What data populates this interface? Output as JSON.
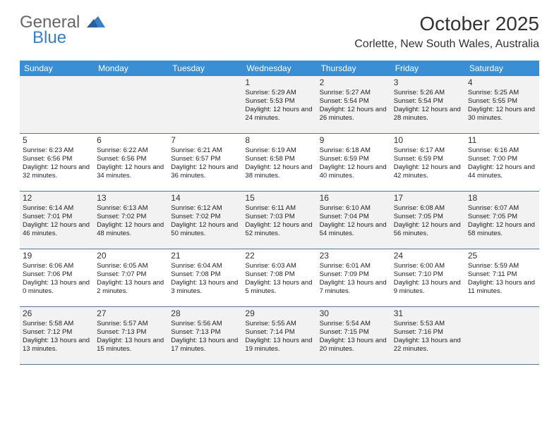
{
  "logo": {
    "text1": "General",
    "text2": "Blue"
  },
  "title": "October 2025",
  "location": "Corlette, New South Wales, Australia",
  "colors": {
    "header_bar": "#3a8fd4",
    "row_alt": "#f2f2f2",
    "row_border": "#5a7590",
    "logo_blue": "#3a7fc4"
  },
  "day_names": [
    "Sunday",
    "Monday",
    "Tuesday",
    "Wednesday",
    "Thursday",
    "Friday",
    "Saturday"
  ],
  "weeks": [
    [
      {},
      {},
      {},
      {
        "n": "1",
        "sr": "5:29 AM",
        "ss": "5:53 PM",
        "dl": "12 hours and 24 minutes."
      },
      {
        "n": "2",
        "sr": "5:27 AM",
        "ss": "5:54 PM",
        "dl": "12 hours and 26 minutes."
      },
      {
        "n": "3",
        "sr": "5:26 AM",
        "ss": "5:54 PM",
        "dl": "12 hours and 28 minutes."
      },
      {
        "n": "4",
        "sr": "5:25 AM",
        "ss": "5:55 PM",
        "dl": "12 hours and 30 minutes."
      }
    ],
    [
      {
        "n": "5",
        "sr": "6:23 AM",
        "ss": "6:56 PM",
        "dl": "12 hours and 32 minutes."
      },
      {
        "n": "6",
        "sr": "6:22 AM",
        "ss": "6:56 PM",
        "dl": "12 hours and 34 minutes."
      },
      {
        "n": "7",
        "sr": "6:21 AM",
        "ss": "6:57 PM",
        "dl": "12 hours and 36 minutes."
      },
      {
        "n": "8",
        "sr": "6:19 AM",
        "ss": "6:58 PM",
        "dl": "12 hours and 38 minutes."
      },
      {
        "n": "9",
        "sr": "6:18 AM",
        "ss": "6:59 PM",
        "dl": "12 hours and 40 minutes."
      },
      {
        "n": "10",
        "sr": "6:17 AM",
        "ss": "6:59 PM",
        "dl": "12 hours and 42 minutes."
      },
      {
        "n": "11",
        "sr": "6:16 AM",
        "ss": "7:00 PM",
        "dl": "12 hours and 44 minutes."
      }
    ],
    [
      {
        "n": "12",
        "sr": "6:14 AM",
        "ss": "7:01 PM",
        "dl": "12 hours and 46 minutes."
      },
      {
        "n": "13",
        "sr": "6:13 AM",
        "ss": "7:02 PM",
        "dl": "12 hours and 48 minutes."
      },
      {
        "n": "14",
        "sr": "6:12 AM",
        "ss": "7:02 PM",
        "dl": "12 hours and 50 minutes."
      },
      {
        "n": "15",
        "sr": "6:11 AM",
        "ss": "7:03 PM",
        "dl": "12 hours and 52 minutes."
      },
      {
        "n": "16",
        "sr": "6:10 AM",
        "ss": "7:04 PM",
        "dl": "12 hours and 54 minutes."
      },
      {
        "n": "17",
        "sr": "6:08 AM",
        "ss": "7:05 PM",
        "dl": "12 hours and 56 minutes."
      },
      {
        "n": "18",
        "sr": "6:07 AM",
        "ss": "7:05 PM",
        "dl": "12 hours and 58 minutes."
      }
    ],
    [
      {
        "n": "19",
        "sr": "6:06 AM",
        "ss": "7:06 PM",
        "dl": "13 hours and 0 minutes."
      },
      {
        "n": "20",
        "sr": "6:05 AM",
        "ss": "7:07 PM",
        "dl": "13 hours and 2 minutes."
      },
      {
        "n": "21",
        "sr": "6:04 AM",
        "ss": "7:08 PM",
        "dl": "13 hours and 3 minutes."
      },
      {
        "n": "22",
        "sr": "6:03 AM",
        "ss": "7:08 PM",
        "dl": "13 hours and 5 minutes."
      },
      {
        "n": "23",
        "sr": "6:01 AM",
        "ss": "7:09 PM",
        "dl": "13 hours and 7 minutes."
      },
      {
        "n": "24",
        "sr": "6:00 AM",
        "ss": "7:10 PM",
        "dl": "13 hours and 9 minutes."
      },
      {
        "n": "25",
        "sr": "5:59 AM",
        "ss": "7:11 PM",
        "dl": "13 hours and 11 minutes."
      }
    ],
    [
      {
        "n": "26",
        "sr": "5:58 AM",
        "ss": "7:12 PM",
        "dl": "13 hours and 13 minutes."
      },
      {
        "n": "27",
        "sr": "5:57 AM",
        "ss": "7:13 PM",
        "dl": "13 hours and 15 minutes."
      },
      {
        "n": "28",
        "sr": "5:56 AM",
        "ss": "7:13 PM",
        "dl": "13 hours and 17 minutes."
      },
      {
        "n": "29",
        "sr": "5:55 AM",
        "ss": "7:14 PM",
        "dl": "13 hours and 19 minutes."
      },
      {
        "n": "30",
        "sr": "5:54 AM",
        "ss": "7:15 PM",
        "dl": "13 hours and 20 minutes."
      },
      {
        "n": "31",
        "sr": "5:53 AM",
        "ss": "7:16 PM",
        "dl": "13 hours and 22 minutes."
      },
      {}
    ]
  ],
  "labels": {
    "sunrise": "Sunrise:",
    "sunset": "Sunset:",
    "daylight": "Daylight:"
  }
}
